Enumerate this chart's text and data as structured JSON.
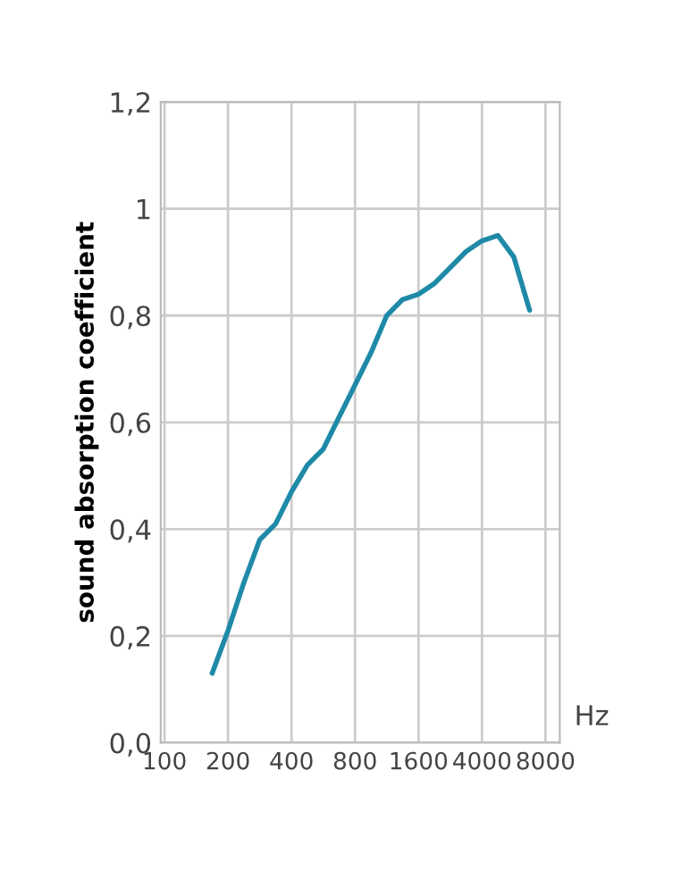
{
  "chart_data": {
    "type": "line",
    "xlabel": "Hz",
    "ylabel": "sound absorption coefficient",
    "series": [
      {
        "color": "#1f8aa8",
        "values": [
          null,
          null,
          null,
          0.13,
          0.21,
          0.3,
          0.38,
          0.41,
          0.47,
          0.52,
          0.55,
          0.61,
          0.67,
          0.73,
          0.8,
          0.83,
          0.84,
          0.86,
          0.89,
          0.92,
          0.94,
          0.95,
          0.91,
          0.81,
          null
        ]
      }
    ],
    "categories": [
      "100",
      null,
      null,
      null,
      "200",
      null,
      null,
      null,
      "400",
      null,
      null,
      null,
      "800",
      null,
      null,
      null,
      "1600",
      null,
      null,
      null,
      "4000",
      null,
      null,
      null,
      "8000"
    ],
    "ylim": [
      0,
      1.2
    ],
    "yticks": [
      {
        "value": 0,
        "label": "0,0"
      },
      {
        "value": 0.2,
        "label": "0,2"
      },
      {
        "value": 0.4,
        "label": "0,4"
      },
      {
        "value": 0.6,
        "label": "0,6"
      },
      {
        "value": 0.8,
        "label": "0,8"
      },
      1,
      {
        "value": 1.2,
        "label": "1,2"
      }
    ],
    "grid": true,
    "legend": false,
    "marker": "none",
    "line_style": "solid"
  }
}
